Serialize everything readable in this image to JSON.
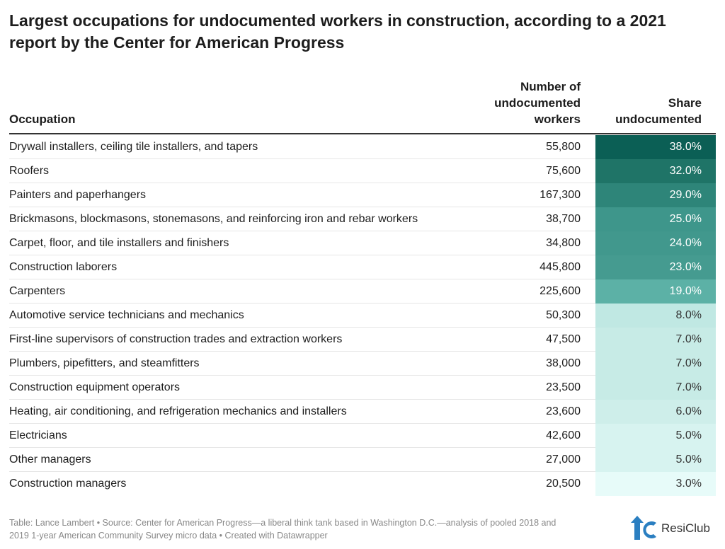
{
  "chart_data": {
    "type": "table",
    "title": "Largest occupations for undocumented workers in construction, according to a 2021 report by the Center for American Progress",
    "columns": [
      "Occupation",
      "Number of undocumented workers",
      "Share undocumented"
    ],
    "rows": [
      {
        "occupation": "Drywall installers, ceiling tile installers, and tapers",
        "number": "55,800",
        "share": "38.0%",
        "color": "#0b5f55",
        "text_color": "#ffffff"
      },
      {
        "occupation": "Roofers",
        "number": "75,600",
        "share": "32.0%",
        "color": "#1f7467",
        "text_color": "#ffffff"
      },
      {
        "occupation": "Painters and paperhangers",
        "number": "167,300",
        "share": "29.0%",
        "color": "#2e8579",
        "text_color": "#ffffff"
      },
      {
        "occupation": "Brickmasons, blockmasons, stonemasons, and reinforcing iron and rebar workers",
        "number": "38,700",
        "share": "25.0%",
        "color": "#3e968b",
        "text_color": "#ffffff"
      },
      {
        "occupation": "Carpet, floor, and tile installers and finishers",
        "number": "34,800",
        "share": "24.0%",
        "color": "#41988d",
        "text_color": "#ffffff"
      },
      {
        "occupation": "Construction laborers",
        "number": "445,800",
        "share": "23.0%",
        "color": "#459b90",
        "text_color": "#ffffff"
      },
      {
        "occupation": "Carpenters",
        "number": "225,600",
        "share": "19.0%",
        "color": "#5cb1a6",
        "text_color": "#ffffff"
      },
      {
        "occupation": "Automotive service technicians and mechanics",
        "number": "50,300",
        "share": "8.0%",
        "color": "#c0e8e3",
        "text_color": "#333333"
      },
      {
        "occupation": "First-line supervisors of construction trades and extraction workers",
        "number": "47,500",
        "share": "7.0%",
        "color": "#c7ebe6",
        "text_color": "#333333"
      },
      {
        "occupation": "Plumbers, pipefitters, and steamfitters",
        "number": "38,000",
        "share": "7.0%",
        "color": "#c7ebe6",
        "text_color": "#333333"
      },
      {
        "occupation": "Construction equipment operators",
        "number": "23,500",
        "share": "7.0%",
        "color": "#c7ebe6",
        "text_color": "#333333"
      },
      {
        "occupation": "Heating, air conditioning, and refrigeration mechanics and installers",
        "number": "23,600",
        "share": "6.0%",
        "color": "#ceeeea",
        "text_color": "#333333"
      },
      {
        "occupation": "Electricians",
        "number": "42,600",
        "share": "5.0%",
        "color": "#d7f3f0",
        "text_color": "#333333"
      },
      {
        "occupation": "Other managers",
        "number": "27,000",
        "share": "5.0%",
        "color": "#d7f3f0",
        "text_color": "#333333"
      },
      {
        "occupation": "Construction managers",
        "number": "20,500",
        "share": "3.0%",
        "color": "#e7fbf9",
        "text_color": "#333333"
      }
    ]
  },
  "header": {
    "occupation": "Occupation",
    "number_line1": "Number of",
    "number_line2": "undocumented",
    "number_line3": "workers",
    "share_line1": "Share",
    "share_line2": "undocumented"
  },
  "footer": {
    "line1": "Table: Lance Lambert • Source: Center for American Progress—a liberal think tank based in Washington D.C.—analysis of pooled 2018 and",
    "line2": "2019 1-year American Community Survey micro data • Created with Datawrapper"
  },
  "logo": {
    "text": "ResiClub",
    "color": "#2b7fc1"
  }
}
